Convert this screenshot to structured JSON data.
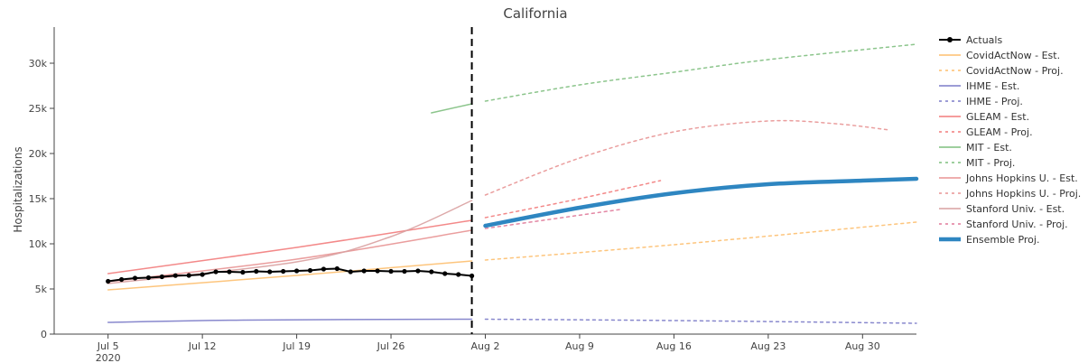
{
  "chart_data": {
    "type": "line",
    "title": "California",
    "xlabel": "",
    "ylabel": "Hospitalizations",
    "ylim": [
      0,
      34000
    ],
    "xlim": [
      "2020-07-01",
      "2020-09-03"
    ],
    "grid": false,
    "legend_position": "right",
    "x_ticks": [
      {
        "date": "2020-07-05",
        "label": "Jul 5",
        "sublabel": "2020"
      },
      {
        "date": "2020-07-12",
        "label": "Jul 12"
      },
      {
        "date": "2020-07-19",
        "label": "Jul 19"
      },
      {
        "date": "2020-07-26",
        "label": "Jul 26"
      },
      {
        "date": "2020-08-02",
        "label": "Aug 2"
      },
      {
        "date": "2020-08-09",
        "label": "Aug 9"
      },
      {
        "date": "2020-08-16",
        "label": "Aug 16"
      },
      {
        "date": "2020-08-23",
        "label": "Aug 23"
      },
      {
        "date": "2020-08-30",
        "label": "Aug 30"
      }
    ],
    "y_ticks": [
      {
        "value": 0,
        "label": "0"
      },
      {
        "value": 5000,
        "label": "5k"
      },
      {
        "value": 10000,
        "label": "10k"
      },
      {
        "value": 15000,
        "label": "15k"
      },
      {
        "value": 20000,
        "label": "20k"
      },
      {
        "value": 25000,
        "label": "25k"
      },
      {
        "value": 30000,
        "label": "30k"
      }
    ],
    "reference_line": {
      "date": "2020-08-01",
      "style": "dashed",
      "color": "#000000"
    },
    "series": [
      {
        "name": "CovidActNow - Est.",
        "color": "#fdbf6f",
        "dash": "solid",
        "width": 1.5,
        "points": [
          [
            "2020-07-05",
            4900
          ],
          [
            "2020-07-19",
            6500
          ],
          [
            "2020-08-01",
            8100
          ]
        ]
      },
      {
        "name": "CovidActNow - Proj.",
        "color": "#fdbf6f",
        "dash": "dot",
        "width": 1.5,
        "points": [
          [
            "2020-08-02",
            8200
          ],
          [
            "2020-08-16",
            9900
          ],
          [
            "2020-09-03",
            12400
          ]
        ]
      },
      {
        "name": "IHME - Est.",
        "color": "#7b7bc8",
        "dash": "solid",
        "width": 1.5,
        "points": [
          [
            "2020-07-05",
            1300
          ],
          [
            "2020-07-15",
            1550
          ],
          [
            "2020-08-01",
            1650
          ]
        ]
      },
      {
        "name": "IHME - Proj.",
        "color": "#7b7bc8",
        "dash": "dot",
        "width": 1.5,
        "points": [
          [
            "2020-08-02",
            1650
          ],
          [
            "2020-08-16",
            1500
          ],
          [
            "2020-09-03",
            1200
          ]
        ]
      },
      {
        "name": "GLEAM - Est.",
        "color": "#f27c7c",
        "dash": "solid",
        "width": 1.5,
        "points": [
          [
            "2020-07-05",
            6700
          ],
          [
            "2020-07-19",
            9600
          ],
          [
            "2020-08-01",
            12600
          ]
        ]
      },
      {
        "name": "GLEAM - Proj.",
        "color": "#f27c7c",
        "dash": "dot",
        "width": 1.5,
        "points": [
          [
            "2020-08-02",
            12900
          ],
          [
            "2020-08-09",
            15000
          ],
          [
            "2020-08-15",
            17000
          ]
        ]
      },
      {
        "name": "MIT - Est.",
        "color": "#7fbf7f",
        "dash": "solid",
        "width": 1.5,
        "points": [
          [
            "2020-07-29",
            24500
          ],
          [
            "2020-08-01",
            25500
          ]
        ]
      },
      {
        "name": "MIT - Proj.",
        "color": "#7fbf7f",
        "dash": "dot",
        "width": 1.5,
        "points": [
          [
            "2020-08-02",
            25800
          ],
          [
            "2020-08-09",
            27600
          ],
          [
            "2020-08-16",
            29000
          ],
          [
            "2020-08-23",
            30400
          ],
          [
            "2020-09-03",
            32100
          ]
        ]
      },
      {
        "name": "Johns Hopkins U. - Est.",
        "color": "#e89494",
        "dash": "solid",
        "width": 1.5,
        "points": [
          [
            "2020-07-05",
            5800
          ],
          [
            "2020-07-19",
            8300
          ],
          [
            "2020-08-01",
            11500
          ]
        ]
      },
      {
        "name": "Johns Hopkins U. - Proj.",
        "color": "#e89494",
        "dash": "dot",
        "width": 1.5,
        "points": [
          [
            "2020-08-02",
            15400
          ],
          [
            "2020-08-09",
            19500
          ],
          [
            "2020-08-16",
            22400
          ],
          [
            "2020-08-23",
            23600
          ],
          [
            "2020-08-28",
            23300
          ],
          [
            "2020-09-01",
            22600
          ]
        ]
      },
      {
        "name": "Stanford Univ. - Est.",
        "color": "#d9a0a0",
        "dash": "solid",
        "width": 1.5,
        "points": [
          [
            "2020-07-05",
            5600
          ],
          [
            "2020-07-19",
            8000
          ],
          [
            "2020-07-26",
            10800
          ],
          [
            "2020-08-01",
            14800
          ]
        ]
      },
      {
        "name": "Stanford Univ. - Proj.",
        "color": "#e07a9a",
        "dash": "dot",
        "width": 1.5,
        "points": [
          [
            "2020-08-02",
            11700
          ],
          [
            "2020-08-12",
            13800
          ]
        ]
      },
      {
        "name": "Ensemble Proj.",
        "color": "#2e86c1",
        "dash": "solid",
        "width": 4.5,
        "points": [
          [
            "2020-08-02",
            12000
          ],
          [
            "2020-08-09",
            14000
          ],
          [
            "2020-08-16",
            15600
          ],
          [
            "2020-08-23",
            16600
          ],
          [
            "2020-08-30",
            17000
          ],
          [
            "2020-09-03",
            17200
          ]
        ]
      }
    ],
    "actuals": {
      "name": "Actuals",
      "color": "#000000",
      "points": [
        [
          "2020-07-05",
          5850
        ],
        [
          "2020-07-06",
          6050
        ],
        [
          "2020-07-07",
          6200
        ],
        [
          "2020-07-08",
          6250
        ],
        [
          "2020-07-09",
          6350
        ],
        [
          "2020-07-10",
          6480
        ],
        [
          "2020-07-11",
          6500
        ],
        [
          "2020-07-12",
          6600
        ],
        [
          "2020-07-13",
          6900
        ],
        [
          "2020-07-14",
          6900
        ],
        [
          "2020-07-15",
          6850
        ],
        [
          "2020-07-16",
          6950
        ],
        [
          "2020-07-17",
          6900
        ],
        [
          "2020-07-18",
          6950
        ],
        [
          "2020-07-19",
          7000
        ],
        [
          "2020-07-20",
          7050
        ],
        [
          "2020-07-21",
          7200
        ],
        [
          "2020-07-22",
          7250
        ],
        [
          "2020-07-23",
          6900
        ],
        [
          "2020-07-24",
          7000
        ],
        [
          "2020-07-25",
          7000
        ],
        [
          "2020-07-26",
          6950
        ],
        [
          "2020-07-27",
          6950
        ],
        [
          "2020-07-28",
          7000
        ],
        [
          "2020-07-29",
          6900
        ],
        [
          "2020-07-30",
          6700
        ],
        [
          "2020-07-31",
          6600
        ],
        [
          "2020-08-01",
          6450
        ]
      ]
    }
  }
}
